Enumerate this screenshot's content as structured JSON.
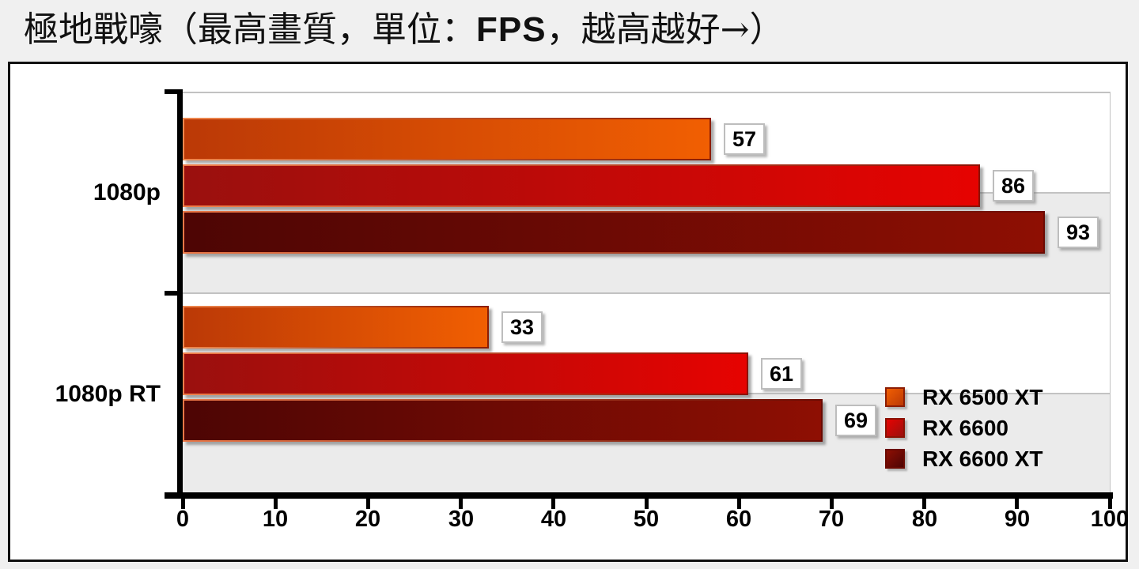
{
  "title": {
    "prefix": "極地戰嚎（最高畫質，單位：",
    "unit": "FPS",
    "suffix": "，越高越好→）",
    "full": "極地戰嚎（最高畫質，單位：FPS，越高越好→）"
  },
  "colors": {
    "page_background": "#f0f0f0",
    "chart_box_background": "#ffffff",
    "band_gray": "#ebebeb",
    "gridline": "#c2c2c2",
    "axis": "#000000",
    "value_label_border": "#bdbdbd",
    "text": "#000000"
  },
  "chart_data": {
    "type": "bar",
    "orientation": "horizontal",
    "title": "極地戰嚎（最高畫質，單位：FPS，越高越好→）",
    "xlabel": "",
    "ylabel": "",
    "value_unit": "FPS",
    "xlim": [
      0,
      100
    ],
    "x_ticks": [
      0,
      10,
      20,
      30,
      40,
      50,
      60,
      70,
      80,
      90,
      100
    ],
    "grid": true,
    "legend_position": "inside-bottom-right",
    "categories": [
      "1080p",
      "1080p RT"
    ],
    "series": [
      {
        "name": "RX 6500 XT",
        "values": [
          57,
          33
        ],
        "fill_start": "#bb3906",
        "fill_end": "#f15f02",
        "border_start": "#f0884e",
        "border_end": "#8c1d04"
      },
      {
        "name": "RX 6600",
        "values": [
          86,
          61
        ],
        "fill_start": "#9a100e",
        "fill_end": "#e60301",
        "border_start": "#ef7f4b",
        "border_end": "#8c1104"
      },
      {
        "name": "RX 6600 XT",
        "values": [
          93,
          69
        ],
        "fill_start": "#4d0504",
        "fill_end": "#8e0f03",
        "border_start": "#e97747",
        "border_end": "#6b0a02"
      }
    ]
  }
}
